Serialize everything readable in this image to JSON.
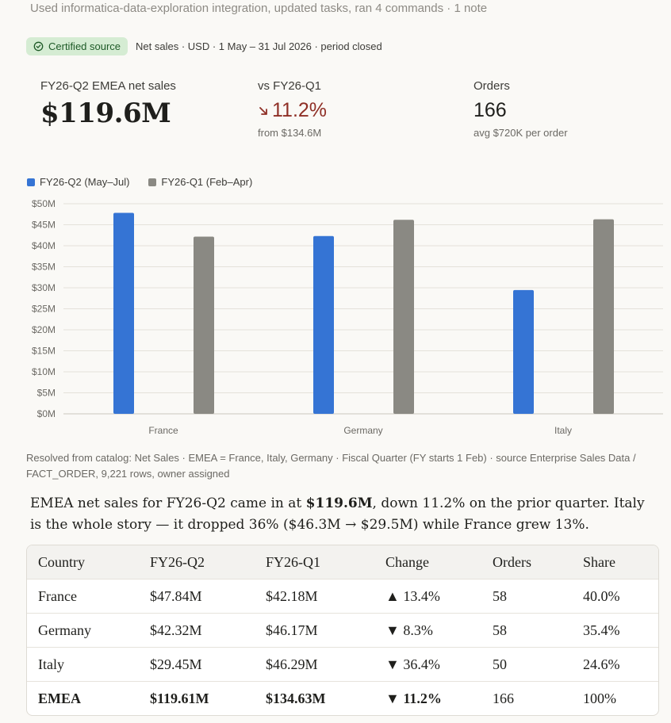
{
  "header": {
    "activity": "Used informatica-data-exploration integration, updated tasks, ran 4 commands · 1 note"
  },
  "source": {
    "badge": "Certified source",
    "meta": "Net sales · USD · 1 May – 31 Jul 2026 · period closed"
  },
  "kpis": {
    "net_sales_label": "FY26-Q2 EMEA net sales",
    "net_sales_value": "$119.6M",
    "vs_label": "vs FY26-Q1",
    "vs_value": "11.2%",
    "vs_direction": "down",
    "vs_sub": "from $134.6M",
    "orders_label": "Orders",
    "orders_value": "166",
    "orders_sub": "avg $720K per order"
  },
  "colors": {
    "q2": "#3574d4",
    "q1": "#8a8983",
    "delta_negative": "#8f2f26",
    "badge_bg": "#d5ecd3"
  },
  "chart_data": {
    "type": "bar",
    "categories": [
      "France",
      "Germany",
      "Italy"
    ],
    "series": [
      {
        "name": "FY26-Q2 (May–Jul)",
        "values": [
          47.84,
          42.32,
          29.45
        ]
      },
      {
        "name": "FY26-Q1 (Feb–Apr)",
        "values": [
          42.18,
          46.17,
          46.29
        ]
      }
    ],
    "y_ticks": [
      "$0M",
      "$5M",
      "$10M",
      "$15M",
      "$20M",
      "$25M",
      "$30M",
      "$35M",
      "$40M",
      "$45M",
      "$50M"
    ],
    "ylim": [
      0,
      50
    ],
    "legend": "top-left",
    "grid": true
  },
  "resolved_note": "Resolved from catalog: Net Sales · EMEA = France, Italy, Germany · Fiscal Quarter (FY starts 1 Feb) · source Enterprise Sales Data / FACT_ORDER, 9,221 rows, owner assigned",
  "summary": {
    "p1": "EMEA net sales for FY26-Q2 came in at ",
    "bold": "$119.6M",
    "p2": ", down 11.2% on the prior quarter. Italy is the whole story — it dropped 36% ($46.3M → $29.5M) while France grew 13%."
  },
  "table": {
    "headers": [
      "Country",
      "FY26-Q2",
      "FY26-Q1",
      "Change",
      "Orders",
      "Share"
    ],
    "rows": [
      [
        "France",
        "$47.84M",
        "$42.18M",
        "▲ 13.4%",
        "58",
        "40.0%"
      ],
      [
        "Germany",
        "$42.32M",
        "$46.17M",
        "▼ 8.3%",
        "58",
        "35.4%"
      ],
      [
        "Italy",
        "$29.45M",
        "$46.29M",
        "▼ 36.4%",
        "50",
        "24.6%"
      ],
      [
        "EMEA",
        "$119.61M",
        "$134.63M",
        "▼ 11.2%",
        "166",
        "100%"
      ]
    ]
  }
}
